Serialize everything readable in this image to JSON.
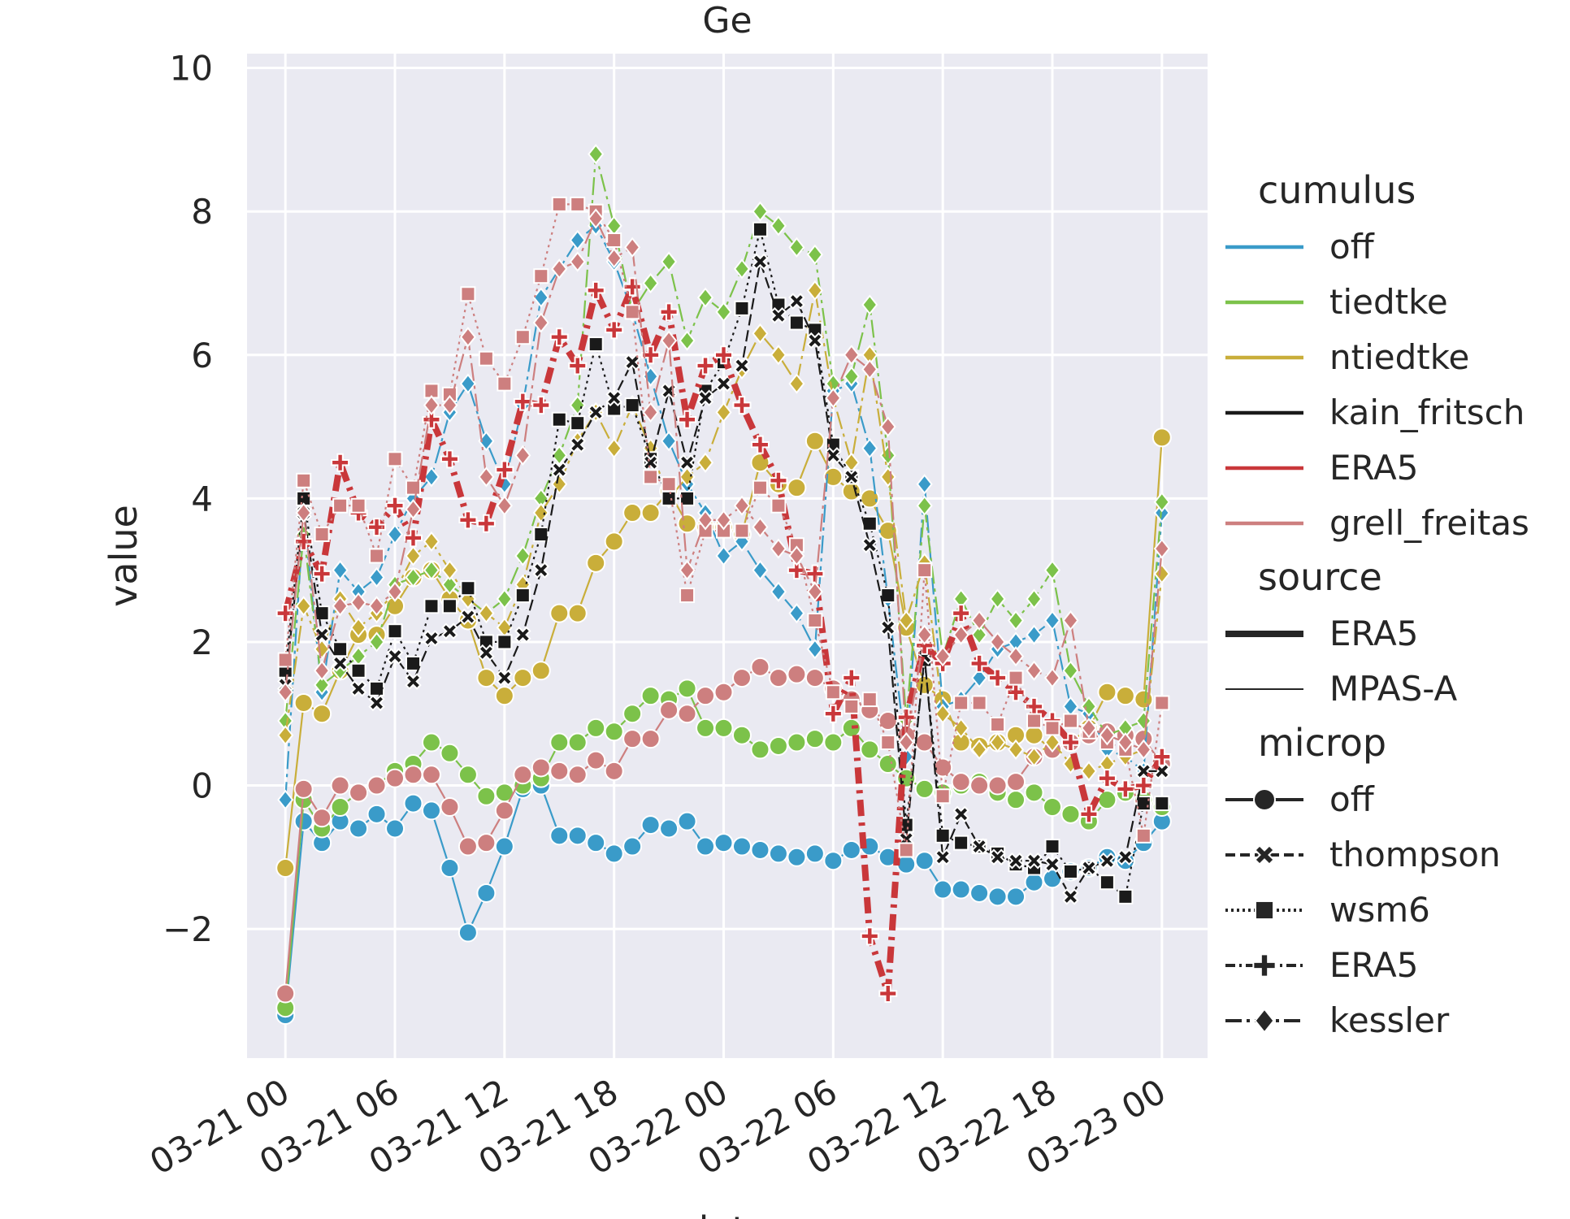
{
  "chart_data": {
    "type": "line",
    "title": "Ge",
    "xlabel": "date",
    "ylabel": "value",
    "xlim_hours": [
      -2.1,
      50.5
    ],
    "ylim": [
      -3.8,
      10.2
    ],
    "x_ticks": [
      {
        "hours": 0,
        "label": "03-21 00"
      },
      {
        "hours": 6,
        "label": "03-21 06"
      },
      {
        "hours": 12,
        "label": "03-21 12"
      },
      {
        "hours": 18,
        "label": "03-21 18"
      },
      {
        "hours": 24,
        "label": "03-22 00"
      },
      {
        "hours": 30,
        "label": "03-22 06"
      },
      {
        "hours": 36,
        "label": "03-22 12"
      },
      {
        "hours": 42,
        "label": "03-22 18"
      },
      {
        "hours": 48,
        "label": "03-23 00"
      }
    ],
    "y_ticks": [
      {
        "value": -2,
        "label": "−2"
      },
      {
        "value": 0,
        "label": "0"
      },
      {
        "value": 2,
        "label": "2"
      },
      {
        "value": 4,
        "label": "4"
      },
      {
        "value": 6,
        "label": "6"
      },
      {
        "value": 8,
        "label": "8"
      },
      {
        "value": 10,
        "label": "10"
      }
    ],
    "grid": true,
    "background": "#eaeaf2",
    "legend_placement": "right",
    "legend": {
      "groups": [
        {
          "title": "cumulus",
          "items": [
            {
              "label": "off",
              "color": "#3a9bc9"
            },
            {
              "label": "tiedtke",
              "color": "#7cc24a"
            },
            {
              "label": "ntiedtke",
              "color": "#c9ae3a"
            },
            {
              "label": "kain_fritsch",
              "color": "#1a1a1a"
            },
            {
              "label": "ERA5",
              "color": "#c9373a"
            },
            {
              "label": "grell_freitas",
              "color": "#cd7f7f"
            }
          ]
        },
        {
          "title": "source",
          "items": [
            {
              "label": "ERA5",
              "style": "thick"
            },
            {
              "label": "MPAS-A",
              "style": "thin"
            }
          ]
        },
        {
          "title": "microp",
          "items": [
            {
              "label": "off",
              "marker": "circle",
              "dash": "solid"
            },
            {
              "label": "thompson",
              "marker": "x",
              "dash": "dashed"
            },
            {
              "label": "wsm6",
              "marker": "square",
              "dash": "dotted"
            },
            {
              "label": "ERA5",
              "marker": "plus",
              "dash": "dashdot"
            },
            {
              "label": "kessler",
              "marker": "diamond",
              "dash": "longdash"
            }
          ]
        }
      ]
    },
    "x_hours": [
      0,
      1,
      2,
      3,
      4,
      5,
      6,
      7,
      8,
      9,
      10,
      11,
      12,
      13,
      14,
      15,
      16,
      17,
      18,
      19,
      20,
      21,
      22,
      23,
      24,
      25,
      26,
      27,
      28,
      29,
      30,
      31,
      32,
      33,
      34,
      35,
      36,
      37,
      38,
      39,
      40,
      41,
      42,
      43,
      44,
      45,
      46,
      47,
      48
    ],
    "series": [
      {
        "cumulus": "off",
        "microp": "off",
        "source": "MPAS-A",
        "color": "#3a9bc9",
        "marker": "circle",
        "dash": "solid",
        "values": [
          -3.2,
          -0.5,
          -0.8,
          -0.5,
          -0.6,
          -0.4,
          -0.6,
          -0.25,
          -0.35,
          -1.15,
          -2.05,
          -1.5,
          -0.85,
          -0.05,
          0.0,
          -0.7,
          -0.7,
          -0.8,
          -0.95,
          -0.85,
          -0.55,
          -0.6,
          -0.5,
          -0.85,
          -0.8,
          -0.85,
          -0.9,
          -0.95,
          -1.0,
          -0.95,
          -1.05,
          -0.9,
          -0.85,
          -1.0,
          -1.1,
          -1.05,
          -1.45,
          -1.45,
          -1.5,
          -1.55,
          -1.55,
          -1.35,
          -1.3,
          -1.2,
          -1.15,
          -1.0,
          -1.05,
          -0.8,
          -0.5
        ]
      },
      {
        "cumulus": "tiedtke",
        "microp": "off",
        "source": "MPAS-A",
        "color": "#7cc24a",
        "marker": "circle",
        "dash": "solid",
        "values": [
          -3.1,
          -0.2,
          -0.6,
          -0.3,
          -0.1,
          0.0,
          0.2,
          0.3,
          0.6,
          0.45,
          0.15,
          -0.15,
          -0.1,
          0.0,
          0.1,
          0.6,
          0.6,
          0.8,
          0.75,
          1.0,
          1.25,
          1.2,
          1.35,
          0.8,
          0.8,
          0.7,
          0.5,
          0.55,
          0.6,
          0.65,
          0.6,
          0.8,
          0.5,
          0.3,
          0.1,
          -0.05,
          -0.1,
          0.0,
          0.05,
          -0.1,
          -0.2,
          -0.1,
          -0.3,
          -0.4,
          -0.5,
          -0.2,
          -0.1,
          -0.2,
          -0.3
        ]
      },
      {
        "cumulus": "ntiedtke",
        "microp": "off",
        "source": "MPAS-A",
        "color": "#c9ae3a",
        "marker": "circle",
        "dash": "solid",
        "values": [
          -1.15,
          1.15,
          1.0,
          1.6,
          2.1,
          2.1,
          2.5,
          2.9,
          3.0,
          2.6,
          2.3,
          1.5,
          1.25,
          1.5,
          1.6,
          2.4,
          2.4,
          3.1,
          3.4,
          3.8,
          3.8,
          4.1,
          3.65,
          3.6,
          3.6,
          3.5,
          4.5,
          4.2,
          4.15,
          4.8,
          4.3,
          4.1,
          4.0,
          3.55,
          2.2,
          1.4,
          1.2,
          0.6,
          0.55,
          0.6,
          0.7,
          0.7,
          0.5,
          0.6,
          0.8,
          1.3,
          1.25,
          1.2,
          4.85
        ]
      },
      {
        "cumulus": "grell_freitas",
        "microp": "off",
        "source": "MPAS-A",
        "color": "#cd7f7f",
        "marker": "circle",
        "dash": "solid",
        "values": [
          -2.9,
          -0.05,
          -0.45,
          0.0,
          -0.1,
          0.0,
          0.1,
          0.15,
          0.15,
          -0.3,
          -0.85,
          -0.8,
          -0.35,
          0.15,
          0.25,
          0.2,
          0.15,
          0.35,
          0.2,
          0.65,
          0.65,
          1.05,
          1.0,
          1.25,
          1.3,
          1.5,
          1.65,
          1.5,
          1.55,
          1.5,
          1.35,
          1.2,
          1.05,
          0.9,
          0.7,
          0.6,
          0.25,
          0.05,
          0.0,
          0.0,
          0.05,
          0.4,
          0.5,
          0.6,
          0.7,
          0.75,
          0.7,
          0.65,
          0.3
        ]
      },
      {
        "cumulus": "off",
        "microp": "kessler",
        "source": "MPAS-A",
        "color": "#3a9bc9",
        "marker": "diamond",
        "dash": "longdash",
        "values": [
          -0.2,
          3.8,
          1.3,
          3.0,
          2.7,
          2.9,
          3.5,
          4.0,
          4.3,
          5.2,
          5.6,
          4.8,
          4.2,
          5.3,
          6.8,
          7.2,
          7.6,
          7.8,
          7.3,
          6.6,
          5.7,
          4.8,
          4.2,
          3.8,
          3.2,
          3.4,
          3.0,
          2.7,
          2.4,
          1.9,
          5.5,
          5.6,
          4.7,
          2.6,
          0.4,
          4.2,
          1.1,
          1.2,
          1.5,
          1.9,
          2.0,
          2.1,
          2.3,
          1.1,
          1.0,
          0.5,
          0.4,
          0.2,
          3.8
        ]
      },
      {
        "cumulus": "tiedtke",
        "microp": "kessler",
        "source": "MPAS-A",
        "color": "#7cc24a",
        "marker": "diamond",
        "dash": "longdash",
        "values": [
          0.9,
          3.5,
          1.4,
          1.6,
          1.8,
          2.0,
          2.8,
          2.9,
          3.0,
          2.8,
          2.6,
          2.4,
          2.6,
          3.2,
          4.0,
          4.6,
          5.3,
          8.8,
          7.8,
          6.6,
          7.0,
          7.3,
          6.2,
          6.8,
          6.6,
          7.2,
          8.0,
          7.8,
          7.5,
          7.4,
          5.6,
          5.7,
          6.7,
          4.6,
          0.9,
          3.9,
          1.8,
          2.6,
          2.1,
          2.6,
          2.3,
          2.6,
          3.0,
          1.6,
          1.1,
          0.7,
          0.8,
          0.9,
          3.95
        ]
      },
      {
        "cumulus": "ntiedtke",
        "microp": "kessler",
        "source": "MPAS-A",
        "color": "#c9ae3a",
        "marker": "diamond",
        "dash": "longdash",
        "values": [
          0.7,
          2.5,
          1.9,
          2.6,
          2.2,
          2.4,
          2.7,
          3.2,
          3.4,
          3.0,
          2.6,
          2.4,
          2.2,
          2.8,
          3.8,
          4.2,
          4.8,
          5.2,
          4.7,
          5.3,
          4.7,
          4.0,
          4.3,
          4.5,
          5.2,
          5.8,
          6.3,
          6.0,
          5.6,
          6.9,
          5.4,
          4.5,
          6.0,
          4.3,
          2.3,
          3.1,
          1.0,
          0.8,
          0.5,
          0.6,
          0.5,
          0.4,
          0.6,
          0.3,
          0.2,
          0.3,
          0.4,
          0.5,
          2.95
        ]
      },
      {
        "cumulus": "kain_fritsch",
        "microp": "wsm6",
        "source": "MPAS-A",
        "color": "#1a1a1a",
        "marker": "square",
        "dash": "dotted",
        "values": [
          1.6,
          4.0,
          2.4,
          1.9,
          1.6,
          1.35,
          2.15,
          1.7,
          2.5,
          2.5,
          2.75,
          2.0,
          2.0,
          2.65,
          3.5,
          5.1,
          5.05,
          6.15,
          5.25,
          5.3,
          4.55,
          4.0,
          4.0,
          5.5,
          5.9,
          6.65,
          7.75,
          6.7,
          6.45,
          6.35,
          4.75,
          4.3,
          3.65,
          2.65,
          -0.55,
          1.75,
          -0.7,
          -0.8,
          -0.85,
          -0.95,
          -1.1,
          -1.15,
          -0.85,
          -1.2,
          -1.15,
          -1.35,
          -1.55,
          -0.25,
          -0.25
        ]
      },
      {
        "cumulus": "kain_fritsch",
        "microp": "thompson",
        "source": "MPAS-A",
        "color": "#1a1a1a",
        "marker": "x",
        "dash": "dashed",
        "values": [
          1.4,
          3.8,
          2.1,
          1.7,
          1.35,
          1.15,
          1.8,
          1.45,
          2.05,
          2.15,
          2.35,
          1.85,
          1.5,
          2.1,
          3.0,
          4.4,
          4.75,
          5.2,
          5.4,
          5.9,
          4.5,
          5.5,
          4.5,
          5.4,
          5.6,
          5.85,
          7.3,
          6.55,
          6.75,
          6.2,
          4.6,
          4.3,
          3.35,
          2.2,
          -0.75,
          1.8,
          -1.0,
          -0.4,
          -0.85,
          -1.0,
          -1.05,
          -1.05,
          -1.1,
          -1.55,
          -1.15,
          -1.05,
          -1.0,
          0.2,
          0.2
        ]
      },
      {
        "cumulus": "ERA5",
        "microp": "ERA5",
        "source": "ERA5",
        "color": "#c9373a",
        "marker": "plus",
        "dash": "dashdot",
        "values": [
          2.4,
          3.4,
          2.95,
          4.5,
          3.8,
          3.6,
          3.9,
          3.45,
          5.1,
          4.55,
          3.7,
          3.65,
          4.4,
          5.35,
          5.3,
          6.25,
          5.85,
          6.9,
          6.35,
          6.95,
          6.0,
          6.6,
          5.1,
          5.85,
          6.0,
          5.3,
          4.75,
          4.25,
          3.0,
          2.95,
          1.0,
          1.5,
          -2.1,
          -2.9,
          0.95,
          1.95,
          1.7,
          2.4,
          1.7,
          1.5,
          1.3,
          1.1,
          0.9,
          0.6,
          -0.4,
          0.1,
          -0.05,
          0.0,
          0.4
        ]
      },
      {
        "cumulus": "grell_freitas",
        "microp": "wsm6",
        "source": "MPAS-A",
        "color": "#cd7f7f",
        "marker": "square",
        "dash": "dotted",
        "values": [
          1.75,
          4.25,
          3.5,
          3.9,
          3.9,
          3.2,
          4.55,
          4.15,
          5.5,
          5.45,
          6.85,
          5.95,
          5.6,
          6.25,
          7.1,
          8.1,
          8.1,
          8.0,
          7.6,
          6.6,
          4.3,
          4.2,
          2.65,
          3.55,
          3.55,
          3.55,
          4.15,
          3.9,
          3.35,
          2.3,
          1.3,
          1.1,
          1.2,
          0.6,
          -0.9,
          3.0,
          -0.15,
          1.15,
          1.15,
          0.85,
          1.5,
          0.9,
          0.8,
          0.9,
          0.75,
          0.6,
          0.5,
          -0.7,
          1.15
        ]
      },
      {
        "cumulus": "grell_freitas",
        "microp": "kessler",
        "source": "MPAS-A",
        "color": "#cd7f7f",
        "marker": "diamond",
        "dash": "longdash",
        "values": [
          1.3,
          3.8,
          1.6,
          2.5,
          2.55,
          2.5,
          2.7,
          3.85,
          5.3,
          5.3,
          6.25,
          4.3,
          3.9,
          4.6,
          6.45,
          7.2,
          7.3,
          7.9,
          7.35,
          7.5,
          5.2,
          6.2,
          3.0,
          3.7,
          3.7,
          3.9,
          3.6,
          3.3,
          3.2,
          2.7,
          5.4,
          6.0,
          5.8,
          5.0,
          0.6,
          2.1,
          1.8,
          2.1,
          2.3,
          2.0,
          1.8,
          1.6,
          1.5,
          2.3,
          0.8,
          0.7,
          0.6,
          0.5,
          3.3
        ]
      }
    ]
  }
}
